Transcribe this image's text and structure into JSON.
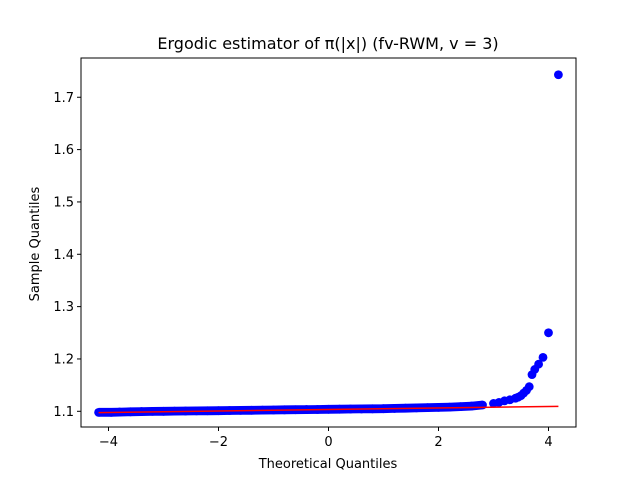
{
  "chart_data": {
    "type": "scatter",
    "title": "Ergodic estimator of π(|x|) (fv-RWM, v = 3)",
    "xlabel": "Theoretical Quantiles",
    "ylabel": "Sample Quantiles",
    "xlim": [
      -4.5,
      4.5
    ],
    "ylim": [
      1.07,
      1.775
    ],
    "xticks": [
      -4,
      -2,
      0,
      2,
      4
    ],
    "xtick_labels": [
      "−4",
      "−2",
      "0",
      "2",
      "4"
    ],
    "yticks": [
      1.1,
      1.2,
      1.3,
      1.4,
      1.5,
      1.6,
      1.7
    ],
    "ytick_labels": [
      "1.1",
      "1.2",
      "1.3",
      "1.4",
      "1.5",
      "1.6",
      "1.7"
    ],
    "grid": false,
    "colors": {
      "points": "#0000ff",
      "line": "#ff0000"
    },
    "series": [
      {
        "kind": "points",
        "x": [
          -4.18,
          -3.95,
          -3.8,
          -3.6,
          -3.4,
          -3.2,
          -3.0,
          -2.8,
          -2.6,
          -2.4,
          -2.2,
          -2.0,
          -1.8,
          -1.6,
          -1.4,
          -1.2,
          -1.0,
          -0.8,
          -0.6,
          -0.4,
          -0.2,
          0.0,
          0.2,
          0.4,
          0.6,
          0.8,
          1.0,
          1.2,
          1.4,
          1.6,
          1.8,
          2.0,
          2.2,
          2.4,
          2.6,
          2.8,
          3.0,
          3.1,
          3.2,
          3.3,
          3.4,
          3.45,
          3.5,
          3.55,
          3.6,
          3.65,
          3.7,
          3.75,
          3.82,
          3.9,
          4.0,
          4.18
        ],
        "y": [
          1.098,
          1.098,
          1.0985,
          1.099,
          1.0995,
          1.0998,
          1.1,
          1.1003,
          1.1005,
          1.1008,
          1.101,
          1.1012,
          1.1015,
          1.1018,
          1.102,
          1.1023,
          1.1025,
          1.1028,
          1.103,
          1.1033,
          1.1035,
          1.1038,
          1.104,
          1.1043,
          1.1045,
          1.1048,
          1.105,
          1.1055,
          1.106,
          1.1065,
          1.107,
          1.1075,
          1.108,
          1.109,
          1.11,
          1.112,
          1.115,
          1.117,
          1.12,
          1.122,
          1.125,
          1.127,
          1.13,
          1.135,
          1.14,
          1.147,
          1.17,
          1.18,
          1.19,
          1.203,
          1.25,
          1.743
        ]
      },
      {
        "kind": "line",
        "x": [
          -4.18,
          4.18
        ],
        "y": [
          1.0975,
          1.1095
        ]
      }
    ]
  }
}
